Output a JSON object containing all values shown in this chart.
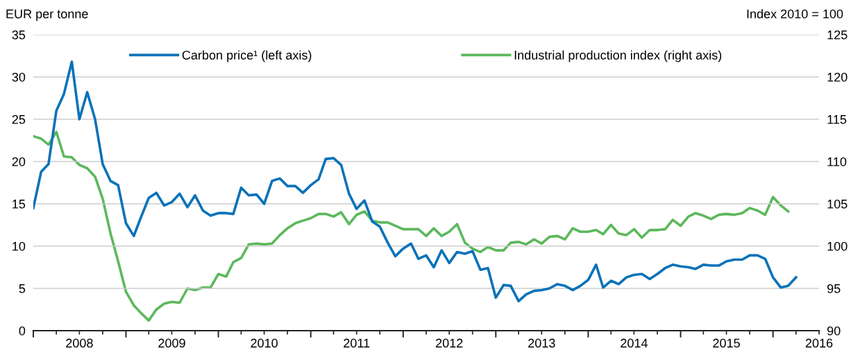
{
  "chart_data": {
    "type": "line",
    "ylabel": "EUR per tonne",
    "y2label": "Index 2010 = 100",
    "x": [
      "2008-01",
      "2008-02",
      "2008-03",
      "2008-04",
      "2008-05",
      "2008-06",
      "2008-07",
      "2008-08",
      "2008-09",
      "2008-10",
      "2008-11",
      "2008-12",
      "2009-01",
      "2009-02",
      "2009-03",
      "2009-04",
      "2009-05",
      "2009-06",
      "2009-07",
      "2009-08",
      "2009-09",
      "2009-10",
      "2009-11",
      "2009-12",
      "2010-01",
      "2010-02",
      "2010-03",
      "2010-04",
      "2010-05",
      "2010-06",
      "2010-07",
      "2010-08",
      "2010-09",
      "2010-10",
      "2010-11",
      "2010-12",
      "2011-01",
      "2011-02",
      "2011-03",
      "2011-04",
      "2011-05",
      "2011-06",
      "2011-07",
      "2011-08",
      "2011-09",
      "2011-10",
      "2011-11",
      "2011-12",
      "2012-01",
      "2012-02",
      "2012-03",
      "2012-04",
      "2012-05",
      "2012-06",
      "2012-07",
      "2012-08",
      "2012-09",
      "2012-10",
      "2012-11",
      "2012-12",
      "2013-01",
      "2013-02",
      "2013-03",
      "2013-04",
      "2013-05",
      "2013-06",
      "2013-07",
      "2013-08",
      "2013-09",
      "2013-10",
      "2013-11",
      "2013-12",
      "2014-01",
      "2014-02",
      "2014-03",
      "2014-04",
      "2014-05",
      "2014-06",
      "2014-07",
      "2014-08",
      "2014-09",
      "2014-10",
      "2014-11",
      "2014-12",
      "2015-01",
      "2015-02",
      "2015-03",
      "2015-04",
      "2015-05",
      "2015-06",
      "2015-07",
      "2015-08",
      "2015-09",
      "2015-10",
      "2015-11",
      "2015-12",
      "2016-01",
      "2016-02",
      "2016-03",
      "2016-04"
    ],
    "series": [
      {
        "name": "Carbon price¹ (left axis)",
        "color": "#0a72b8",
        "values": [
          14.5,
          18.8,
          19.7,
          26.0,
          28.0,
          31.8,
          25.0,
          28.2,
          25.0,
          19.7,
          17.7,
          17.2,
          12.7,
          11.2,
          13.4,
          15.7,
          16.3,
          14.8,
          15.2,
          16.2,
          14.6,
          16.0,
          14.2,
          13.6,
          13.9,
          13.9,
          13.8,
          16.9,
          16.0,
          16.1,
          15.0,
          17.7,
          18.0,
          17.1,
          17.1,
          16.3,
          17.2,
          17.9,
          20.3,
          20.4,
          19.6,
          16.2,
          14.4,
          15.4,
          12.9,
          12.3,
          10.4,
          8.8,
          9.7,
          10.3,
          8.5,
          8.9,
          7.5,
          9.5,
          8.0,
          9.3,
          9.1,
          9.4,
          7.2,
          7.4,
          3.9,
          5.4,
          5.3,
          3.5,
          4.3,
          4.7,
          4.8,
          5.0,
          5.5,
          5.3,
          4.8,
          5.3,
          6.0,
          7.8,
          5.1,
          5.9,
          5.5,
          6.3,
          6.6,
          6.7,
          6.1,
          6.7,
          7.4,
          7.8,
          7.6,
          7.5,
          7.3,
          7.8,
          7.7,
          7.7,
          8.2,
          8.4,
          8.4,
          8.9,
          8.9,
          8.5,
          6.3,
          5.1,
          5.3,
          6.3
        ]
      },
      {
        "name": "Industrial production index (right axis)",
        "color": "#5cb85c",
        "axis": "y2",
        "values": [
          113.0,
          112.7,
          112.0,
          113.5,
          110.6,
          110.5,
          109.6,
          109.2,
          108.2,
          105.6,
          101.5,
          98.2,
          94.6,
          93.0,
          92.1,
          91.2,
          92.5,
          93.2,
          93.4,
          93.3,
          95.0,
          94.8,
          95.1,
          95.1,
          96.7,
          96.4,
          98.1,
          98.6,
          100.2,
          100.3,
          100.2,
          100.3,
          101.3,
          102.1,
          102.7,
          103.0,
          103.3,
          103.8,
          103.8,
          103.5,
          104.0,
          102.6,
          103.7,
          104.1,
          103.0,
          102.8,
          102.8,
          102.4,
          102.0,
          102.0,
          102.0,
          101.2,
          102.1,
          101.2,
          101.7,
          102.6,
          100.4,
          99.7,
          99.3,
          99.9,
          99.5,
          99.5,
          100.4,
          100.5,
          100.2,
          100.8,
          100.3,
          101.1,
          101.2,
          100.8,
          102.1,
          101.7,
          101.7,
          101.9,
          101.4,
          102.5,
          101.5,
          101.3,
          102.0,
          101.0,
          101.9,
          101.9,
          102.0,
          103.1,
          102.4,
          103.5,
          103.9,
          103.6,
          103.2,
          103.7,
          103.8,
          103.7,
          103.9,
          104.5,
          104.2,
          103.7,
          105.8,
          104.8,
          104.1,
          null
        ]
      }
    ],
    "xlim": [
      "2008-01-01",
      "2016-07-01"
    ],
    "xticks": [
      {
        "value": "2008-01-01",
        "label": null
      },
      {
        "value": "2008-04-01",
        "label": null
      },
      {
        "value": "2008-07-01",
        "label": "2008"
      },
      {
        "value": "2008-10-01",
        "label": null
      },
      {
        "value": "2009-01-01",
        "label": null
      },
      {
        "value": "2009-04-01",
        "label": null
      },
      {
        "value": "2009-07-01",
        "label": "2009"
      },
      {
        "value": "2009-10-01",
        "label": null
      },
      {
        "value": "2010-01-01",
        "label": null
      },
      {
        "value": "2010-04-01",
        "label": null
      },
      {
        "value": "2010-07-01",
        "label": "2010"
      },
      {
        "value": "2010-10-01",
        "label": null
      },
      {
        "value": "2011-01-01",
        "label": null
      },
      {
        "value": "2011-04-01",
        "label": null
      },
      {
        "value": "2011-07-01",
        "label": "2011"
      },
      {
        "value": "2011-10-01",
        "label": null
      },
      {
        "value": "2012-01-01",
        "label": null
      },
      {
        "value": "2012-04-01",
        "label": null
      },
      {
        "value": "2012-07-01",
        "label": "2012"
      },
      {
        "value": "2012-10-01",
        "label": null
      },
      {
        "value": "2013-01-01",
        "label": null
      },
      {
        "value": "2013-04-01",
        "label": null
      },
      {
        "value": "2013-07-01",
        "label": "2013"
      },
      {
        "value": "2013-10-01",
        "label": null
      },
      {
        "value": "2014-01-01",
        "label": null
      },
      {
        "value": "2014-04-01",
        "label": null
      },
      {
        "value": "2014-07-01",
        "label": "2014"
      },
      {
        "value": "2014-10-01",
        "label": null
      },
      {
        "value": "2015-01-01",
        "label": null
      },
      {
        "value": "2015-04-01",
        "label": null
      },
      {
        "value": "2015-07-01",
        "label": "2015"
      },
      {
        "value": "2015-10-01",
        "label": null
      },
      {
        "value": "2016-01-01",
        "label": null
      },
      {
        "value": "2016-04-01",
        "label": null
      },
      {
        "value": "2016-07-01",
        "label": "2016"
      }
    ],
    "ylim": [
      0,
      35
    ],
    "yticks": [
      0,
      5,
      10,
      15,
      20,
      25,
      30,
      35
    ],
    "y2lim": [
      90,
      125
    ],
    "y2ticks": [
      90,
      95,
      100,
      105,
      110,
      115,
      120,
      125
    ],
    "grid": "y",
    "legend": "top",
    "marker": "none",
    "line_style": "solid"
  }
}
